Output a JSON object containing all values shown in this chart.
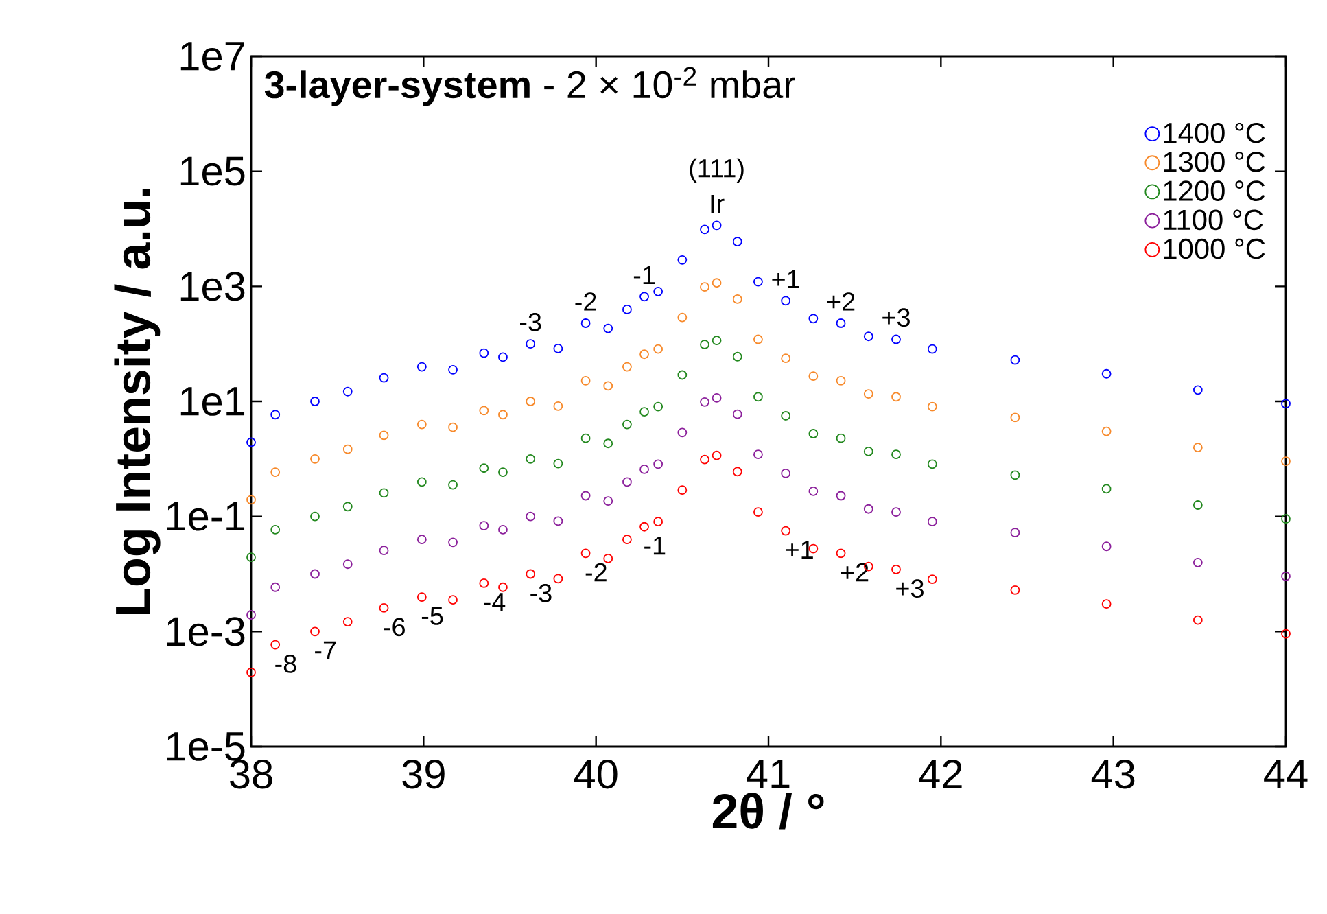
{
  "chart_data": {
    "type": "scatter",
    "title": "**3-layer-system** - 2 × 10$^{-2}$ mbar",
    "xlabel": "2θ / °",
    "ylabel": "Log Intensity / a.u.",
    "x": [
      38.0,
      38.14,
      38.37,
      38.56,
      38.77,
      38.99,
      39.17,
      39.35,
      39.46,
      39.62,
      39.78,
      39.94,
      40.07,
      40.18,
      40.28,
      40.36,
      40.5,
      40.63,
      40.7,
      40.82,
      40.94,
      41.1,
      41.26,
      41.42,
      41.58,
      41.74,
      41.95,
      42.43,
      42.96,
      43.49,
      44.0
    ],
    "series": [
      {
        "name": "1400 °C",
        "color": "#0000ff",
        "values": [
          1.95,
          5.89,
          10.0,
          14.8,
          25.7,
          39.8,
          35.5,
          69.2,
          58.9,
          100,
          83,
          229,
          186,
          398,
          661,
          813,
          2880,
          9770,
          11500,
          6000,
          1200,
          562,
          275,
          229,
          135,
          120,
          81.3,
          52.5,
          30.2,
          15.8,
          9.12
        ]
      },
      {
        "name": "1300 °C",
        "color": "#f7892a",
        "values": [
          0.195,
          0.589,
          1.0,
          1.48,
          2.57,
          3.98,
          3.55,
          6.92,
          5.89,
          10.0,
          8.3,
          22.9,
          18.6,
          39.8,
          66.1,
          81.3,
          288,
          977,
          1150,
          600,
          120,
          56.2,
          27.5,
          22.9,
          13.5,
          12.0,
          8.13,
          5.25,
          3.02,
          1.58,
          0.912
        ]
      },
      {
        "name": "1200 °C",
        "color": "#22881e",
        "values": [
          0.0195,
          0.0589,
          0.1,
          0.148,
          0.257,
          0.398,
          0.355,
          0.692,
          0.589,
          1.0,
          0.83,
          2.29,
          1.86,
          3.98,
          6.61,
          8.13,
          28.8,
          97.7,
          115,
          60,
          12.0,
          5.62,
          2.75,
          2.29,
          1.35,
          1.2,
          0.813,
          0.525,
          0.302,
          0.158,
          0.0912
        ]
      },
      {
        "name": "1100 °C",
        "color": "#8b1f9b",
        "values": [
          0.00195,
          0.00589,
          0.01,
          0.0148,
          0.0257,
          0.0398,
          0.0355,
          0.0692,
          0.0589,
          0.1,
          0.083,
          0.229,
          0.186,
          0.398,
          0.661,
          0.813,
          2.88,
          9.77,
          11.5,
          6.0,
          1.2,
          0.562,
          0.275,
          0.229,
          0.135,
          0.12,
          0.0813,
          0.0525,
          0.0302,
          0.0158,
          0.00912
        ]
      },
      {
        "name": "1000 °C",
        "color": "#ff0000",
        "values": [
          0.000195,
          0.000589,
          0.001,
          0.00148,
          0.00257,
          0.00398,
          0.00355,
          0.00692,
          0.00589,
          0.01,
          0.0083,
          0.0229,
          0.0186,
          0.0398,
          0.0661,
          0.0813,
          0.288,
          0.977,
          1.15,
          0.6,
          0.12,
          0.0562,
          0.0275,
          0.0229,
          0.0135,
          0.012,
          0.00813,
          0.00525,
          0.00302,
          0.00158,
          0.000912
        ]
      }
    ],
    "xlim": [
      38,
      44
    ],
    "xticks": [
      38,
      39,
      40,
      41,
      42,
      43,
      44
    ],
    "ylim": [
      1e-05,
      10000000
    ],
    "yticks": [
      {
        "value": 1e-05,
        "label": "1e-5"
      },
      {
        "value": 0.001,
        "label": "1e-3"
      },
      {
        "value": 0.1,
        "label": "1e-1"
      },
      {
        "value": 10,
        "label": "1e1"
      },
      {
        "value": 1000,
        "label": "1e3"
      },
      {
        "value": 100000,
        "label": "1e5"
      },
      {
        "value": 10000000,
        "label": "1e7"
      }
    ],
    "log": "y",
    "legend": "top right",
    "marker": "circle",
    "annotations": [
      {
        "text": "(111)",
        "x": 40.7,
        "y": 11500
      },
      {
        "text": "Ir",
        "x": 40.7,
        "y": 11500
      },
      {
        "text": "-3",
        "x": 39.62,
        "y": 100
      },
      {
        "text": "-2",
        "x": 39.94,
        "y": 229
      },
      {
        "text": "-1",
        "x": 40.28,
        "y": 661
      },
      {
        "text": "+1",
        "x": 41.1,
        "y": 562
      },
      {
        "text": "+2",
        "x": 41.42,
        "y": 229
      },
      {
        "text": "+3",
        "x": 41.74,
        "y": 120
      },
      {
        "text": "-8",
        "x": 38.14,
        "y": 0.000589
      },
      {
        "text": "-7",
        "x": 38.37,
        "y": 0.001
      },
      {
        "text": "-6",
        "x": 38.77,
        "y": 0.00257
      },
      {
        "text": "-5",
        "x": 38.99,
        "y": 0.00398
      },
      {
        "text": "-4",
        "x": 39.35,
        "y": 0.00692
      },
      {
        "text": "-3",
        "x": 39.62,
        "y": 0.01
      },
      {
        "text": "-2",
        "x": 39.94,
        "y": 0.0229
      },
      {
        "text": "-1",
        "x": 40.28,
        "y": 0.0661
      },
      {
        "text": "+1",
        "x": 41.1,
        "y": 0.0562
      },
      {
        "text": "+2",
        "x": 41.42,
        "y": 0.0229
      },
      {
        "text": "+3",
        "x": 41.74,
        "y": 0.012
      }
    ]
  }
}
